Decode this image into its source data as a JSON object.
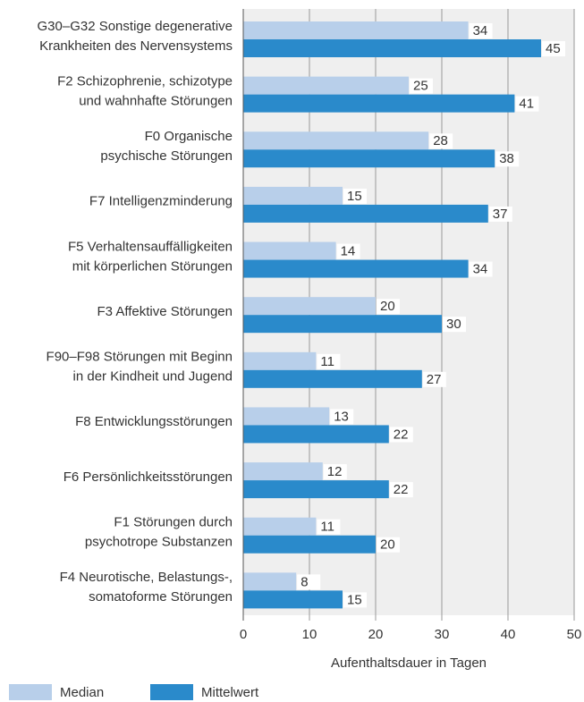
{
  "chart_data": {
    "type": "barh",
    "categories": [
      [
        "G30–G32 Sonstige degenerative",
        "Krankheiten des Nervensystems"
      ],
      [
        "F2 Schizophrenie, schizotype",
        "und wahnhafte Störungen"
      ],
      [
        "F0 Organische",
        "psychische Störungen"
      ],
      [
        "F7 Intelligenzminderung"
      ],
      [
        "F5 Verhaltensauffälligkeiten",
        "mit körperlichen Störungen"
      ],
      [
        "F3 Affektive Störungen"
      ],
      [
        "F90–F98 Störungen mit Beginn",
        "in der Kindheit und Jugend"
      ],
      [
        "F8 Entwicklungsstörungen"
      ],
      [
        "F6 Persönlichkeitsstörungen"
      ],
      [
        "F1 Störungen durch",
        "psychotrope Substanzen"
      ],
      [
        "F4 Neurotische, Belastungs-,",
        "somatoforme Störungen"
      ]
    ],
    "series": [
      {
        "name": "Median",
        "color": "#b8cfea",
        "values": [
          34,
          25,
          28,
          15,
          14,
          20,
          11,
          13,
          12,
          11,
          8
        ]
      },
      {
        "name": "Mittelwert",
        "color": "#2a8acb",
        "values": [
          45,
          41,
          38,
          37,
          34,
          30,
          27,
          22,
          22,
          20,
          15
        ]
      }
    ],
    "xlabel": "Aufenthaltsdauer in Tagen",
    "xlim": [
      0,
      50
    ],
    "xticks": [
      0,
      10,
      20,
      30,
      40,
      50
    ],
    "grid": true
  }
}
